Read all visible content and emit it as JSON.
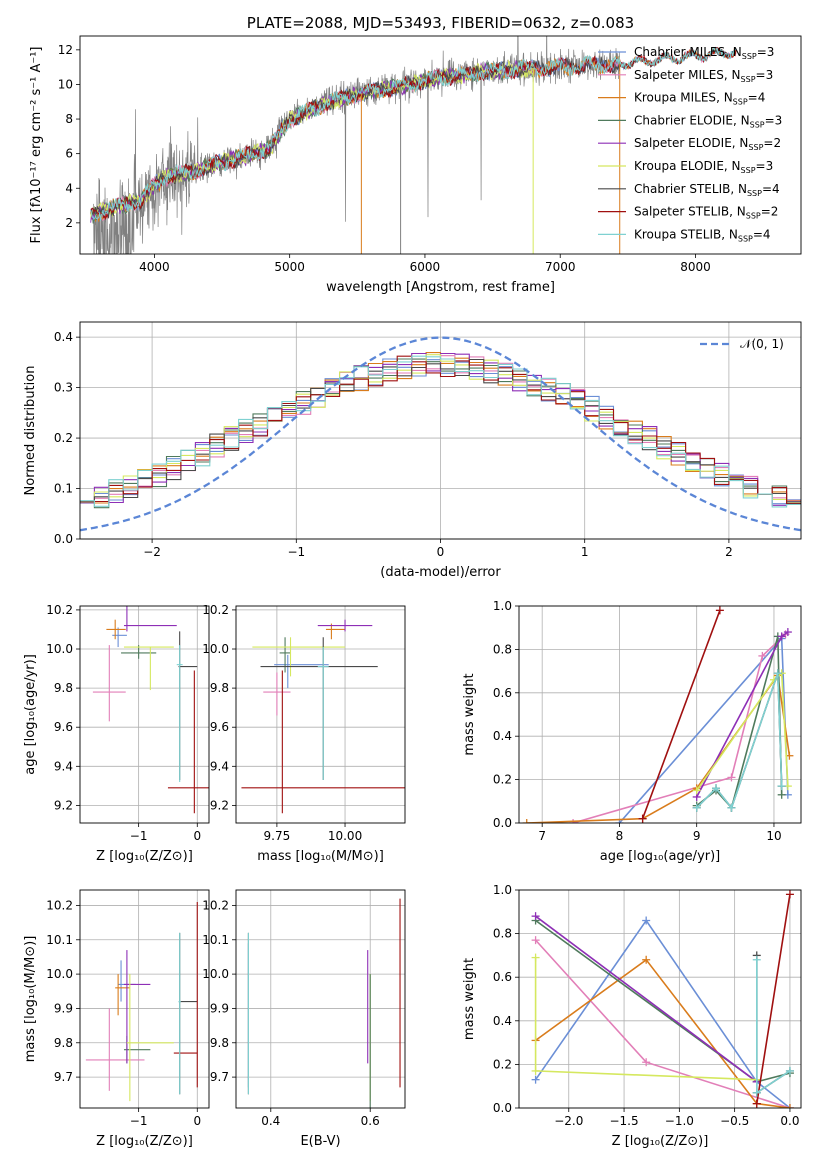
{
  "colors": {
    "Chabrier MILES": "#6b8fd6",
    "Salpeter MILES": "#e27fb8",
    "Kroupa MILES": "#d97c1c",
    "Chabrier ELODIE": "#4f7a5c",
    "Salpeter ELODIE": "#8e2fb6",
    "Kroupa ELODIE": "#d5e85f",
    "Chabrier STELIB": "#4a4a4a",
    "Salpeter STELIB": "#a01010",
    "Kroupa STELIB": "#7fd1d1",
    "data": "#808080",
    "gaussian": "#5b86d6"
  },
  "chart_data": [
    {
      "id": "spectrum",
      "type": "line",
      "title": "PLATE=2088, MJD=53493, FIBERID=0632, z=0.083",
      "xlabel": "wavelength [Angstrom, rest frame]",
      "ylabel": "Flux [fλ10⁻¹⁷ erg cm⁻² s⁻¹ A⁻¹]",
      "xlim": [
        3450,
        8780
      ],
      "ylim": [
        0.2,
        12.8
      ],
      "xticks": [
        4000,
        5000,
        6000,
        7000,
        8000
      ],
      "yticks": [
        2,
        4,
        6,
        8,
        10,
        12
      ],
      "grid": false,
      "legend_position": "top-right",
      "continuum": {
        "x": [
          3550,
          3700,
          3900,
          4000,
          4100,
          4300,
          4500,
          4700,
          4850,
          5000,
          5300,
          5600,
          5900,
          6100,
          6400,
          6700,
          7000,
          7200,
          7440
        ],
        "y": [
          2.5,
          2.9,
          3.3,
          4.2,
          4.7,
          5.0,
          5.5,
          5.9,
          6.3,
          8.0,
          9.0,
          9.6,
          10.0,
          10.4,
          10.7,
          10.9,
          11.0,
          11.1,
          11.2
        ]
      },
      "series": [
        {
          "name": "Chabrier MILES",
          "nssp": "3",
          "x_end": 8300
        },
        {
          "name": "Salpeter MILES",
          "nssp": "3",
          "x_end": 8300
        },
        {
          "name": "Kroupa MILES",
          "nssp": "4",
          "x_end": 8300
        },
        {
          "name": "Chabrier ELODIE",
          "nssp": "3",
          "x_end": 6800
        },
        {
          "name": "Salpeter ELODIE",
          "nssp": "2",
          "x_end": 6800
        },
        {
          "name": "Kroupa ELODIE",
          "nssp": "3",
          "x_end": 6800
        },
        {
          "name": "Chabrier STELIB",
          "nssp": "4",
          "x_end": 8300
        },
        {
          "name": "Salpeter STELIB",
          "nssp": "2",
          "x_end": 8300
        },
        {
          "name": "Kroupa STELIB",
          "nssp": "4",
          "x_end": 8300
        }
      ]
    },
    {
      "id": "residuals",
      "type": "line",
      "xlabel": "(data-model)/error",
      "ylabel": "Normed distribution",
      "xlim": [
        -2.5,
        2.5
      ],
      "ylim": [
        0.0,
        0.43
      ],
      "xticks": [
        -2,
        -1,
        0,
        1,
        2
      ],
      "yticks": [
        0.0,
        0.1,
        0.2,
        0.3,
        0.4
      ],
      "grid": true,
      "legend_position": "top-right",
      "legend_label": "𝒩(0, 1)",
      "bin_width": 0.1,
      "gaussian": {
        "mu": 0,
        "sigma": 1
      }
    },
    {
      "id": "age-vs-z",
      "type": "scatter",
      "xlabel": "Z [log₁₀(Z/Z⊙)]",
      "ylabel": "age  [log₁₀(age/yr)]",
      "xlim": [
        -2.0,
        0.2
      ],
      "ylim": [
        9.11,
        10.22
      ],
      "xticks": [
        -1,
        0
      ],
      "yticks": [
        9.2,
        9.4,
        9.6,
        9.8,
        10.0,
        10.2
      ],
      "grid": true,
      "points": [
        {
          "model": "Chabrier MILES",
          "x": -1.35,
          "y": 10.07,
          "xe": [
            0.1,
            0.15
          ],
          "ye": [
            0.06,
            0.04
          ]
        },
        {
          "model": "Salpeter MILES",
          "x": -1.5,
          "y": 9.78,
          "xe": [
            0.28,
            0.28
          ],
          "ye": [
            0.15,
            0.24
          ]
        },
        {
          "model": "Kroupa MILES",
          "x": -1.4,
          "y": 10.1,
          "xe": [
            0.15,
            0.18
          ],
          "ye": [
            0.05,
            0.05
          ]
        },
        {
          "model": "Chabrier ELODIE",
          "x": -1.0,
          "y": 9.98,
          "xe": [
            0.3,
            0.3
          ],
          "ye": [
            0.03,
            0.04
          ]
        },
        {
          "model": "Salpeter ELODIE",
          "x": -1.2,
          "y": 10.12,
          "xe": [
            0.05,
            0.85
          ],
          "ye": [
            0.03,
            0.27
          ]
        },
        {
          "model": "Kroupa ELODIE",
          "x": -0.8,
          "y": 10.01,
          "xe": [
            0.45,
            0.4
          ],
          "ye": [
            0.22,
            0.0
          ]
        },
        {
          "model": "Chabrier STELIB",
          "x": -0.3,
          "y": 9.91,
          "xe": [
            0.02,
            0.3
          ],
          "ye": [
            0.58,
            0.18
          ]
        },
        {
          "model": "Salpeter STELIB",
          "x": -0.05,
          "y": 9.29,
          "xe": [
            0.45,
            0.45
          ],
          "ye": [
            0.13,
            0.6
          ]
        },
        {
          "model": "Kroupa STELIB",
          "x": -0.3,
          "y": 9.92,
          "xe": [
            0.05,
            0.05
          ],
          "ye": [
            0.6,
            0.1
          ]
        }
      ]
    },
    {
      "id": "age-vs-mass",
      "type": "scatter",
      "xlabel": "mass [log₁₀(M/M⊙)]",
      "ylabel": "",
      "xlim": [
        9.6,
        10.22
      ],
      "ylim": [
        9.11,
        10.22
      ],
      "xticks": [
        9.75,
        10.0
      ],
      "xtick_labels": [
        "9.75",
        "10.00"
      ],
      "yticks": [
        9.2,
        9.4,
        9.6,
        9.8,
        10.0,
        10.2
      ],
      "grid": true,
      "points": [
        {
          "model": "Chabrier MILES",
          "x": 9.79,
          "y": 9.92,
          "xe": [
            0.05,
            0.15
          ],
          "ye": [
            0.12,
            0.05
          ]
        },
        {
          "model": "Salpeter MILES",
          "x": 9.75,
          "y": 9.78,
          "xe": [
            0.05,
            0.05
          ],
          "ye": [
            0.12,
            0.1
          ]
        },
        {
          "model": "Kroupa MILES",
          "x": 9.95,
          "y": 10.1,
          "xe": [
            0.02,
            0.05
          ],
          "ye": [
            0.05,
            0.03
          ]
        },
        {
          "model": "Chabrier ELODIE",
          "x": 9.78,
          "y": 9.98,
          "xe": [
            0.02,
            0.02
          ],
          "ye": [
            0.1,
            0.08
          ]
        },
        {
          "model": "Salpeter ELODIE",
          "x": 10.0,
          "y": 10.12,
          "xe": [
            0.1,
            0.1
          ],
          "ye": [
            0.03,
            0.03
          ]
        },
        {
          "model": "Kroupa ELODIE",
          "x": 9.8,
          "y": 10.01,
          "xe": [
            0.14,
            0.2
          ],
          "ye": [
            0.15,
            0.05
          ]
        },
        {
          "model": "Chabrier STELIB",
          "x": 9.92,
          "y": 9.91,
          "xe": [
            0.23,
            0.2
          ],
          "ye": [
            0.58,
            0.15
          ]
        },
        {
          "model": "Salpeter STELIB",
          "x": 9.77,
          "y": 9.29,
          "xe": [
            0.15,
            0.45
          ],
          "ye": [
            0.13,
            0.6
          ]
        },
        {
          "model": "Kroupa STELIB",
          "x": 9.92,
          "y": 9.91,
          "xe": [
            0.02,
            0.02
          ],
          "ye": [
            0.58,
            0.1
          ]
        }
      ]
    },
    {
      "id": "massweight-vs-age",
      "type": "line",
      "xlabel": "age  [log₁₀(age/yr)]",
      "ylabel": "mass weight",
      "xlim": [
        6.7,
        10.35
      ],
      "ylim": [
        0.0,
        1.0
      ],
      "xticks": [
        7,
        8,
        9,
        10
      ],
      "yticks": [
        0.0,
        0.2,
        0.4,
        0.6,
        0.8,
        1.0
      ],
      "grid": true,
      "series": [
        {
          "model": "Chabrier MILES",
          "x": [
            8.0,
            10.1,
            10.18
          ],
          "y": [
            0.0,
            0.85,
            0.13
          ]
        },
        {
          "model": "Salpeter MILES",
          "x": [
            7.4,
            9.45,
            9.85,
            10.15
          ],
          "y": [
            0.0,
            0.21,
            0.77,
            0.87
          ]
        },
        {
          "model": "Kroupa MILES",
          "x": [
            6.8,
            8.3,
            9.0,
            10.05,
            10.2
          ],
          "y": [
            0.0,
            0.02,
            0.16,
            0.68,
            0.31
          ]
        },
        {
          "model": "Chabrier ELODIE",
          "x": [
            9.0,
            9.25,
            9.45,
            10.05,
            10.1
          ],
          "y": [
            0.08,
            0.15,
            0.07,
            0.86,
            0.13
          ]
        },
        {
          "model": "Salpeter ELODIE",
          "x": [
            9.0,
            10.1,
            10.18
          ],
          "y": [
            0.12,
            0.86,
            0.88
          ]
        },
        {
          "model": "Kroupa ELODIE",
          "x": [
            9.0,
            10.0,
            10.1,
            10.18
          ],
          "y": [
            0.15,
            0.66,
            0.69,
            0.17
          ]
        },
        {
          "model": "Chabrier STELIB",
          "x": [
            9.0,
            9.25,
            9.45,
            10.05,
            10.1
          ],
          "y": [
            0.07,
            0.16,
            0.07,
            0.69,
            0.17
          ]
        },
        {
          "model": "Salpeter STELIB",
          "x": [
            8.3,
            9.3
          ],
          "y": [
            0.02,
            0.98
          ]
        },
        {
          "model": "Kroupa STELIB",
          "x": [
            9.0,
            9.25,
            9.45,
            10.05,
            10.1
          ],
          "y": [
            0.07,
            0.16,
            0.07,
            0.69,
            0.17
          ]
        }
      ]
    },
    {
      "id": "mass-vs-z",
      "type": "scatter",
      "xlabel": "Z [log₁₀(Z/Z⊙)]",
      "ylabel": "mass [log₁₀(M/M⊙)]",
      "xlim": [
        -2.0,
        0.2
      ],
      "ylim": [
        9.61,
        10.245
      ],
      "xticks": [
        -1,
        0
      ],
      "yticks": [
        9.7,
        9.8,
        9.9,
        10.0,
        10.1,
        10.2
      ],
      "grid": true,
      "points": [
        {
          "model": "Chabrier MILES",
          "x": -1.3,
          "y": 9.97,
          "xe": [
            0.05,
            0.25
          ],
          "ye": [
            0.05,
            0.07
          ]
        },
        {
          "model": "Salpeter MILES",
          "x": -1.5,
          "y": 9.75,
          "xe": [
            0.4,
            0.6
          ],
          "ye": [
            0.09,
            0.15
          ]
        },
        {
          "model": "Kroupa MILES",
          "x": -1.35,
          "y": 9.96,
          "xe": [
            0.05,
            0.2
          ],
          "ye": [
            0.08,
            0.04
          ]
        },
        {
          "model": "Chabrier ELODIE",
          "x": -1.2,
          "y": 9.78,
          "xe": [
            0.05,
            0.4
          ],
          "ye": [
            0.04,
            0.04
          ]
        },
        {
          "model": "Salpeter ELODIE",
          "x": -1.2,
          "y": 9.97,
          "xe": [
            0.05,
            0.4
          ],
          "ye": [
            0.23,
            0.1
          ]
        },
        {
          "model": "Kroupa ELODIE",
          "x": -1.15,
          "y": 9.8,
          "xe": [
            0.05,
            0.75
          ],
          "ye": [
            0.17,
            0.2
          ]
        },
        {
          "model": "Chabrier STELIB",
          "x": -0.3,
          "y": 9.92,
          "xe": [
            0.02,
            0.3
          ],
          "ye": [
            0.27,
            0.2
          ]
        },
        {
          "model": "Salpeter STELIB",
          "x": 0.0,
          "y": 9.77,
          "xe": [
            0.4,
            0.0
          ],
          "ye": [
            0.1,
            0.44
          ]
        },
        {
          "model": "Kroupa STELIB",
          "x": -0.3,
          "y": 9.92,
          "xe": [
            0.02,
            0.02
          ],
          "ye": [
            0.27,
            0.2
          ]
        }
      ]
    },
    {
      "id": "mass-vs-ebv",
      "type": "scatter",
      "xlabel": "E(B-V)",
      "ylabel": "",
      "xlim": [
        0.33,
        0.67
      ],
      "ylim": [
        9.61,
        10.245
      ],
      "xticks": [
        0.4,
        0.6
      ],
      "yticks": [
        9.7,
        9.8,
        9.9,
        10.0,
        10.1,
        10.2
      ],
      "grid": true,
      "points": [
        {
          "model": "Chabrier MILES",
          "x": 0.355,
          "y": 9.97,
          "ye": [
            0.3,
            0.12
          ]
        },
        {
          "model": "Salpeter ELODIE",
          "x": 0.595,
          "y": 9.97,
          "ye": [
            0.23,
            0.1
          ]
        },
        {
          "model": "Kroupa ELODIE",
          "x": 0.6,
          "y": 9.8,
          "ye": [
            0.17,
            0.2
          ]
        },
        {
          "model": "Chabrier ELODIE",
          "x": 0.6,
          "y": 9.78,
          "ye": [
            0.17,
            0.22
          ]
        },
        {
          "model": "Chabrier STELIB",
          "x": 0.355,
          "y": 9.92,
          "ye": [
            0.27,
            0.2
          ]
        },
        {
          "model": "Salpeter STELIB",
          "x": 0.66,
          "y": 9.77,
          "ye": [
            0.1,
            0.45
          ]
        },
        {
          "model": "Kroupa STELIB",
          "x": 0.355,
          "y": 9.92,
          "ye": [
            0.27,
            0.2
          ]
        }
      ]
    },
    {
      "id": "massweight-vs-z",
      "type": "line",
      "xlabel": "Z [log₁₀(Z/Z⊙)]",
      "ylabel": "mass weight",
      "xlim": [
        -2.45,
        0.1
      ],
      "ylim": [
        0.0,
        1.0
      ],
      "xticks": [
        -2.0,
        -1.5,
        -1.0,
        -0.5,
        0.0
      ],
      "xtick_labels": [
        "−2.0",
        "−1.5",
        "−1.0",
        "−0.5",
        "0.0"
      ],
      "yticks": [
        0.0,
        0.2,
        0.4,
        0.6,
        0.8,
        1.0
      ],
      "grid": true,
      "series": [
        {
          "model": "Chabrier MILES",
          "x": [
            -2.3,
            -1.3,
            -0.3,
            0.0
          ],
          "y": [
            0.13,
            0.86,
            0.12,
            0.0
          ]
        },
        {
          "model": "Salpeter MILES",
          "x": [
            -2.3,
            -1.3,
            0.0
          ],
          "y": [
            0.77,
            0.21,
            0.0
          ]
        },
        {
          "model": "Kroupa MILES",
          "x": [
            -2.3,
            -1.3,
            -0.3,
            0.0
          ],
          "y": [
            0.31,
            0.68,
            0.02,
            0.0
          ]
        },
        {
          "model": "Chabrier ELODIE",
          "x": [
            -2.3,
            -0.3,
            0.0
          ],
          "y": [
            0.86,
            0.12,
            0.16
          ]
        },
        {
          "model": "Salpeter ELODIE",
          "x": [
            -2.3,
            -0.3
          ],
          "y": [
            0.88,
            0.12
          ]
        },
        {
          "model": "Kroupa ELODIE",
          "x": [
            -2.3,
            -2.3,
            -0.3
          ],
          "y": [
            0.69,
            0.17,
            0.13
          ]
        },
        {
          "model": "Chabrier STELIB",
          "x": [
            -0.3,
            -0.3,
            0.0
          ],
          "y": [
            0.7,
            0.07,
            0.17
          ]
        },
        {
          "model": "Salpeter STELIB",
          "x": [
            -0.3,
            0.0
          ],
          "y": [
            0.02,
            0.98
          ]
        },
        {
          "model": "Kroupa STELIB",
          "x": [
            -0.3,
            -0.3,
            0.0
          ],
          "y": [
            0.68,
            0.07,
            0.17
          ]
        }
      ]
    }
  ]
}
